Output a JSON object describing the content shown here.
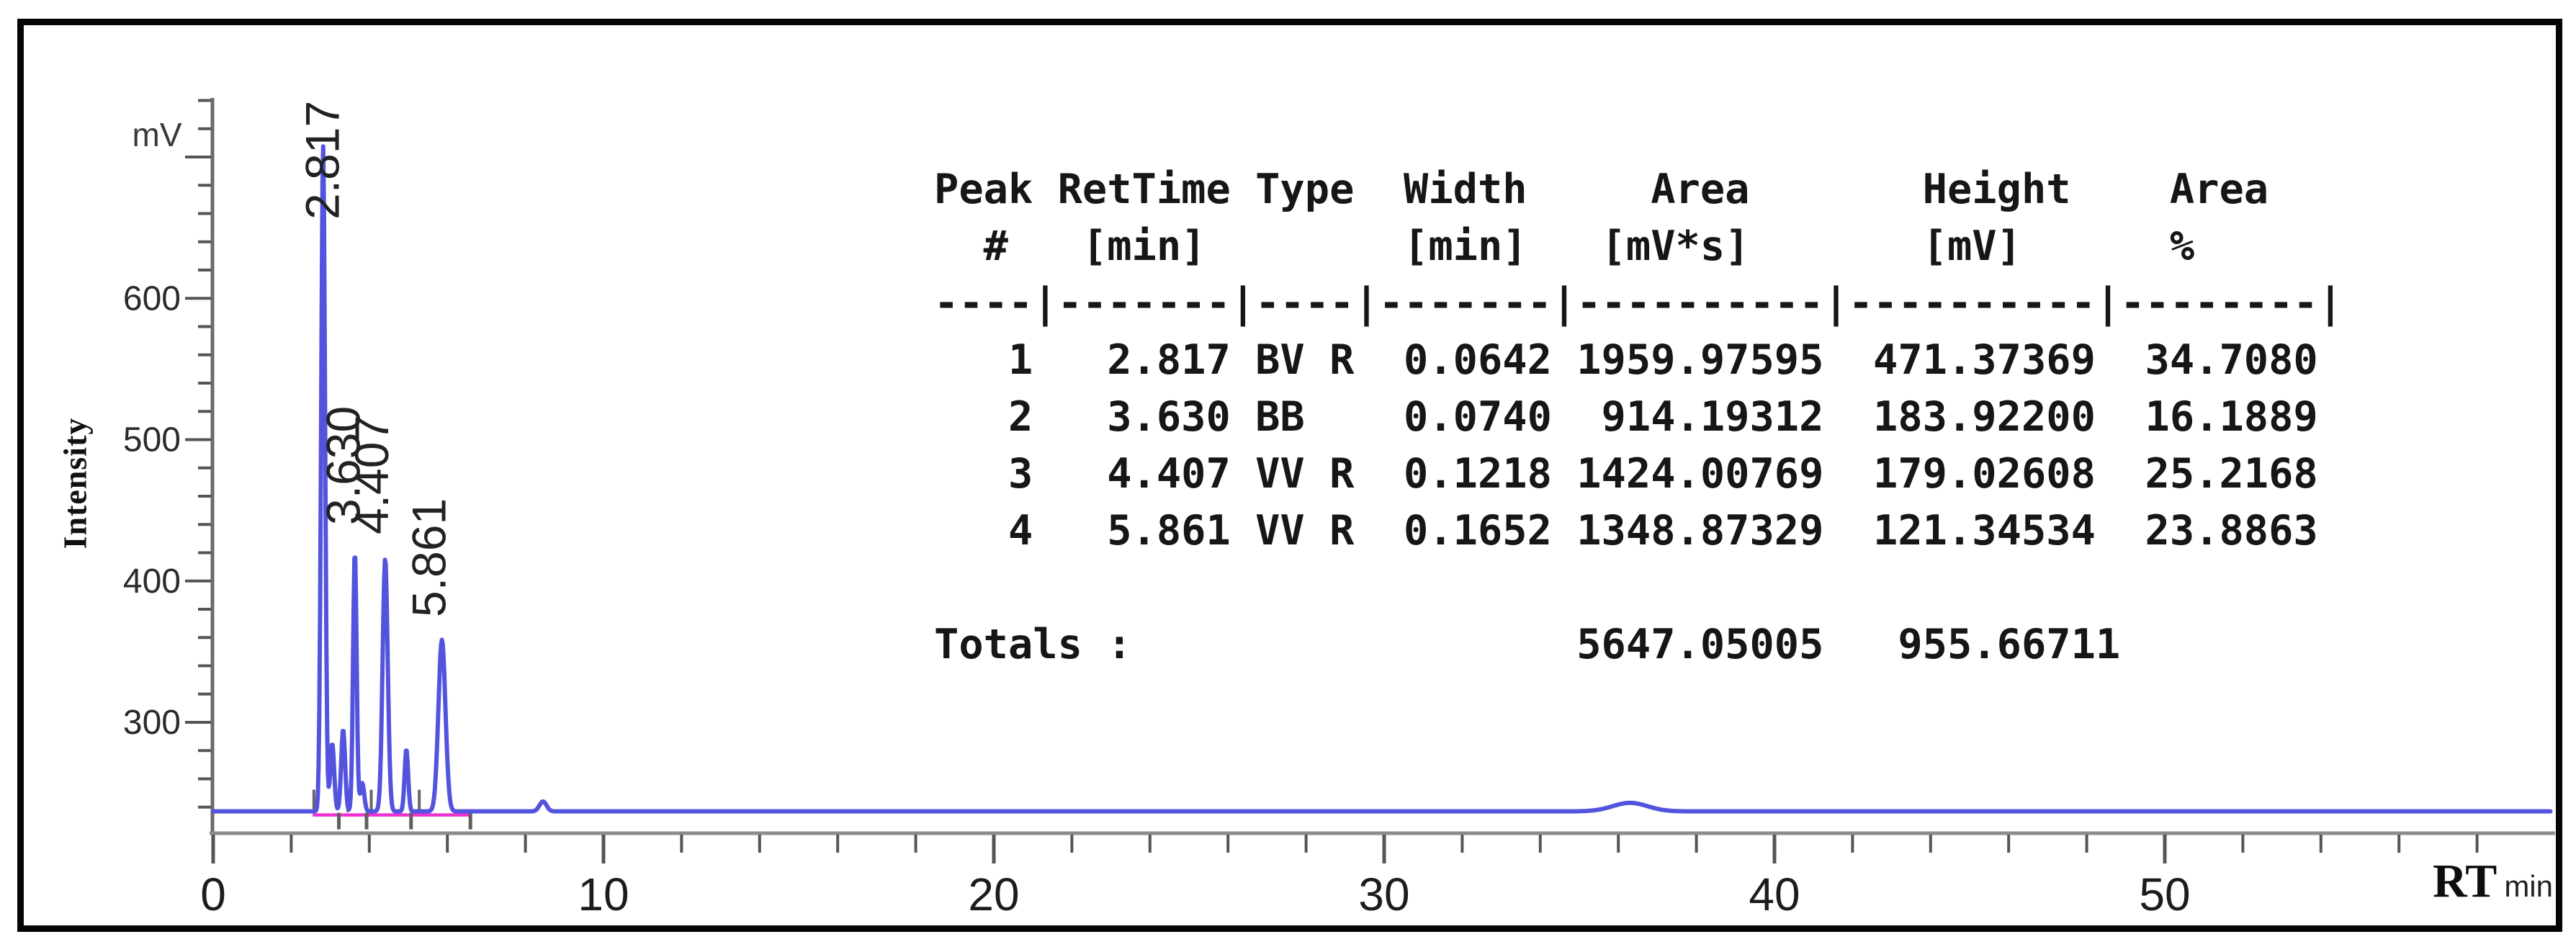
{
  "window": {
    "background": "#ffffff",
    "frame_border_color": "#050505"
  },
  "y_axis": {
    "unit_label": "mV",
    "axis_title": "Intensity",
    "major_ticks": [
      300,
      400,
      500,
      600,
      700
    ],
    "labeled_ticks": [
      300,
      400,
      500,
      600
    ],
    "minor_min": 240,
    "minor_max": 740,
    "minor_step": 20
  },
  "x_axis": {
    "axis_title_bold": "RT",
    "axis_title_unit": "min",
    "major_ticks": [
      0,
      10,
      20,
      30,
      40,
      50
    ],
    "minor_min": 0,
    "minor_max": 58,
    "minor_step": 2
  },
  "chart_data": {
    "type": "line",
    "title": "",
    "xlabel": "RT min",
    "ylabel": "Intensity mV",
    "x_range_min": [
      0,
      60
    ],
    "y_range_mV": [
      220,
      740
    ],
    "grid": false,
    "baseline_mV": 237,
    "trace_color": "#5353de",
    "integration_baseline_color": "#f02fd2",
    "integration_baseline_span_min": [
      2.55,
      6.62
    ],
    "integration_tick_color": "#666666",
    "integration_ticks_up_min": [
      2.58,
      3.45,
      4.05,
      5.28
    ],
    "integration_ticks_down_min": [
      3.22,
      3.93,
      5.07,
      6.59
    ],
    "peaks": [
      {
        "number": 1,
        "rt_min": 2.817,
        "type": "BV R",
        "width_min": 0.0642,
        "area_mVs": 1959.97595,
        "height_mV": 471.37369,
        "area_pct": 34.708,
        "label": "2.817",
        "sigma_min": 0.05
      },
      {
        "number": 2,
        "rt_min": 3.63,
        "type": "BB",
        "width_min": 0.074,
        "area_mVs": 914.19312,
        "height_mV": 183.922,
        "area_pct": 16.1889,
        "label": "3.630",
        "sigma_min": 0.045
      },
      {
        "number": 3,
        "rt_min": 4.407,
        "type": "VV R",
        "width_min": 0.1218,
        "area_mVs": 1424.00769,
        "height_mV": 179.02608,
        "area_pct": 25.2168,
        "label": "4.407",
        "sigma_min": 0.065
      },
      {
        "number": 4,
        "rt_min": 5.861,
        "type": "VV R",
        "width_min": 0.1652,
        "area_mVs": 1348.87329,
        "height_mV": 121.34534,
        "area_pct": 23.8863,
        "label": "5.861",
        "sigma_min": 0.09
      }
    ],
    "minor_features": [
      {
        "rt_min": 3.05,
        "height_mV": 48,
        "sigma_min": 0.05
      },
      {
        "rt_min": 3.33,
        "height_mV": 58,
        "sigma_min": 0.05
      },
      {
        "rt_min": 3.82,
        "height_mV": 20,
        "sigma_min": 0.05
      },
      {
        "rt_min": 4.95,
        "height_mV": 44,
        "sigma_min": 0.045
      },
      {
        "rt_min": 8.45,
        "height_mV": 7,
        "sigma_min": 0.09
      },
      {
        "rt_min": 36.3,
        "height_mV": 6,
        "sigma_min": 0.45
      }
    ],
    "totals": {
      "area_mVs": 5647.05005,
      "height_mV": 955.66711
    }
  },
  "table": {
    "lines": [
      "Peak RetTime Type  Width     Area       Height    Area",
      "  #   [min]        [min]   [mV*s]       [mV]      %",
      "----|-------|----|-------|----------|----------|--------|",
      "   1   2.817 BV R  0.0642 1959.97595  471.37369  34.7080",
      "   2   3.630 BB    0.0740  914.19312  183.92200  16.1889",
      "   3   4.407 VV R  0.1218 1424.00769  179.02608  25.2168",
      "   4   5.861 VV R  0.1652 1348.87329  121.34534  23.8863",
      "",
      "Totals :                  5647.05005   955.66711"
    ]
  }
}
